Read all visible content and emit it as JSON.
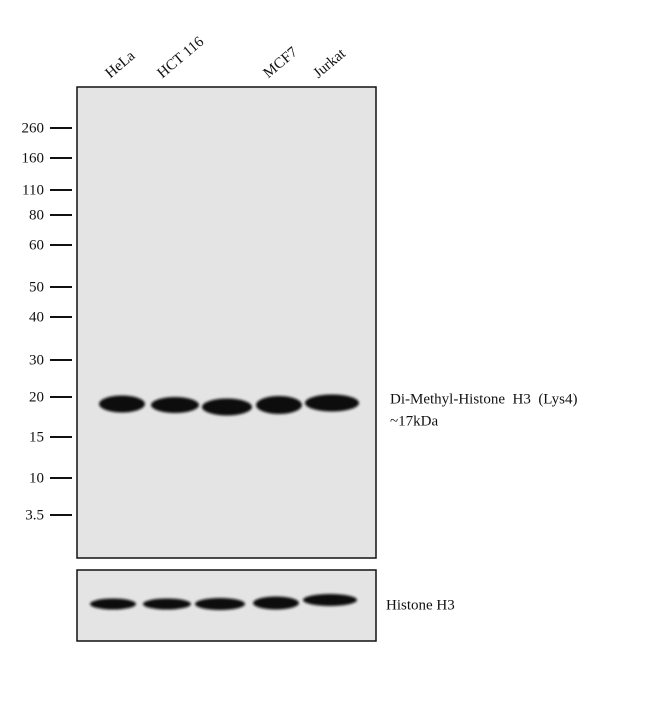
{
  "lanes": [
    "HeLa",
    "HCT 116",
    "MCF7",
    "Jurkat"
  ],
  "markers": [
    "260",
    "160",
    "110",
    "80",
    "60",
    "50",
    "40",
    "30",
    "20",
    "15",
    "10",
    "3.5"
  ],
  "main_band": {
    "label": "Di-Methyl-Histone  H3  (Lys4)",
    "size": "~17kDa"
  },
  "control_band": {
    "label": "Histone H3"
  }
}
